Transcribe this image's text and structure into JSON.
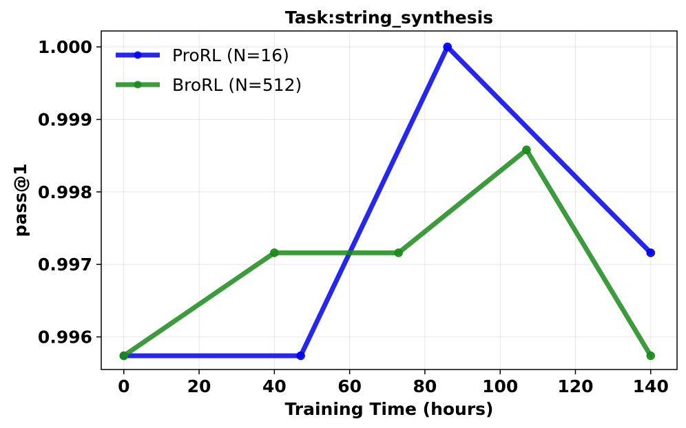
{
  "chart_data": {
    "type": "line",
    "title": "Task:string_synthesis",
    "xlabel": "Training Time (hours)",
    "ylabel": "pass@1",
    "xlim": [
      -6,
      147
    ],
    "ylim": [
      0.99555,
      1.00022
    ],
    "xticks": [
      0,
      20,
      40,
      60,
      80,
      100,
      120,
      140
    ],
    "yticks": [
      0.996,
      0.997,
      0.998,
      0.999,
      1.0
    ],
    "ytick_labels": [
      "0.996",
      "0.997",
      "0.998",
      "0.999",
      "1.000"
    ],
    "grid": true,
    "legend_position": "upper-left",
    "series": [
      {
        "name": "ProRL (N=16)",
        "color": "#0000ee",
        "x": [
          0,
          47,
          86,
          140
        ],
        "y": [
          0.99574,
          0.99574,
          1.0,
          0.99716
        ]
      },
      {
        "name": "BroRL (N=512)",
        "color": "#1a8a1a",
        "x": [
          0,
          40,
          73,
          107,
          140
        ],
        "y": [
          0.99574,
          0.99716,
          0.99716,
          0.99858,
          0.99574
        ]
      }
    ]
  }
}
